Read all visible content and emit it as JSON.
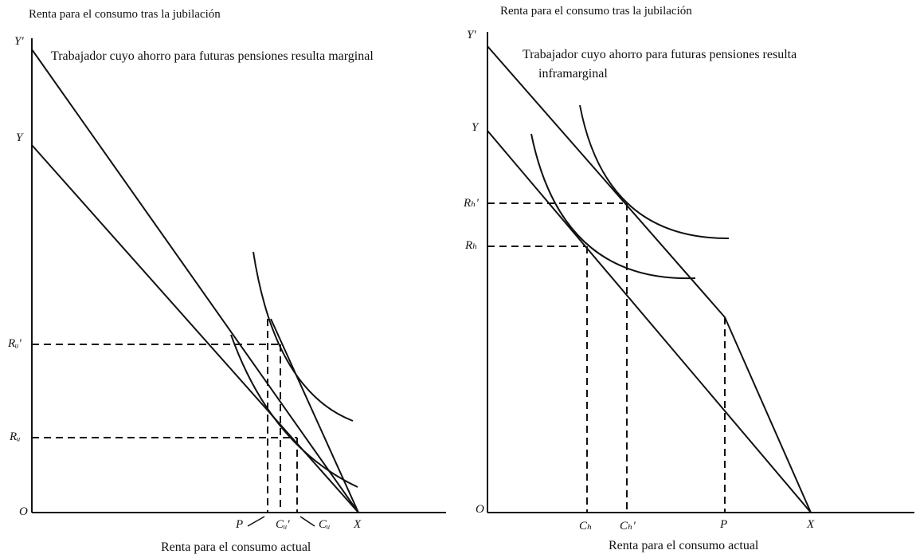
{
  "left_panel": {
    "y_axis_title": "Renta para el consumo tras la jubilación",
    "x_axis_title": "Renta para el consumo actual",
    "annotation": "Trabajador cuyo ahorro para futuras pensiones resulta marginal",
    "labels": {
      "y_prime": "Y'",
      "y": "Y",
      "r_u_prime": "Rᵤ'",
      "r_u": "Rᵤ",
      "origin": "O",
      "p": "P",
      "c_u_prime": "Cᵤ'",
      "c_u": "Cᵤ",
      "x": "X"
    }
  },
  "right_panel": {
    "y_axis_title": "Renta para el consumo tras la jubilación",
    "x_axis_title": "Renta para el consumo actual",
    "annotation_line1": "Trabajador cuyo ahorro para futuras pensiones resulta",
    "annotation_line2": "inframarginal",
    "labels": {
      "y_prime": "Y'",
      "y": "Y",
      "r_b_prime": "Rₕ'",
      "r_b": "Rₕ",
      "origin": "O",
      "c_b": "Cₕ",
      "c_b_prime": "Cₕ'",
      "p": "P",
      "x": "X"
    }
  },
  "colors": {
    "ink": "#111111"
  }
}
